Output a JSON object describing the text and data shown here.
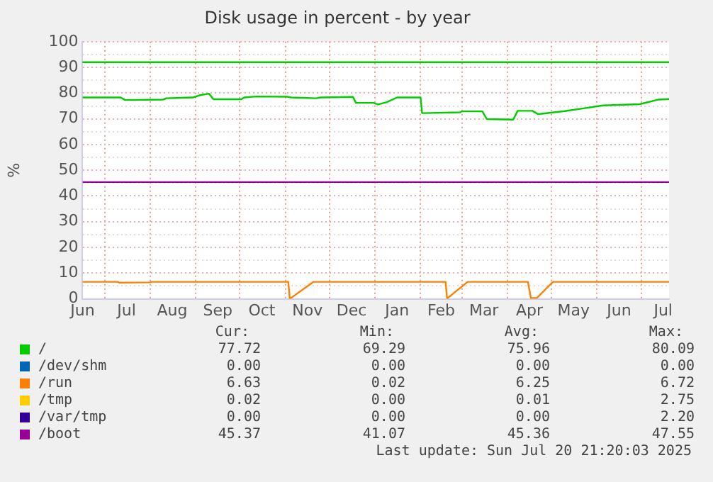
{
  "chart_data": {
    "type": "line",
    "title": "Disk usage in percent - by year",
    "ylabel": "%",
    "xlim": [
      "2024-06-16",
      "2025-07-20"
    ],
    "xticks": [
      {
        "value": "2024-06-16",
        "label": "Jun"
      },
      {
        "value": "2024-07-01",
        "label": null
      },
      {
        "value": "2024-07-16",
        "label": "Jul"
      },
      {
        "value": "2024-08-01",
        "label": null
      },
      {
        "value": "2024-08-16",
        "label": "Aug"
      },
      {
        "value": "2024-09-01",
        "label": null
      },
      {
        "value": "2024-09-16",
        "label": "Sep"
      },
      {
        "value": "2024-10-01",
        "label": null
      },
      {
        "value": "2024-10-16",
        "label": "Oct"
      },
      {
        "value": "2024-11-01",
        "label": null
      },
      {
        "value": "2024-11-16",
        "label": "Nov"
      },
      {
        "value": "2024-12-01",
        "label": null
      },
      {
        "value": "2024-12-16",
        "label": "Dec"
      },
      {
        "value": "2025-01-01",
        "label": null
      },
      {
        "value": "2025-01-16",
        "label": "Jan"
      },
      {
        "value": "2025-02-01",
        "label": null
      },
      {
        "value": "2025-02-15",
        "label": "Feb"
      },
      {
        "value": "2025-03-01",
        "label": null
      },
      {
        "value": "2025-03-16",
        "label": "Mar"
      },
      {
        "value": "2025-04-01",
        "label": null
      },
      {
        "value": "2025-04-16",
        "label": "Apr"
      },
      {
        "value": "2025-05-01",
        "label": null
      },
      {
        "value": "2025-05-16",
        "label": "May"
      },
      {
        "value": "2025-06-01",
        "label": null
      },
      {
        "value": "2025-06-16",
        "label": "Jun"
      },
      {
        "value": "2025-07-01",
        "label": null
      },
      {
        "value": "2025-07-16",
        "label": "Jul"
      }
    ],
    "ylim": [
      0,
      100
    ],
    "yticks": [
      0,
      {
        "value": 5,
        "label": null
      },
      10,
      {
        "value": 15,
        "label": null
      },
      20,
      {
        "value": 25,
        "label": null
      },
      30,
      {
        "value": 35,
        "label": null
      },
      40,
      {
        "value": 45,
        "label": null
      },
      50,
      {
        "value": 55,
        "label": null
      },
      60,
      {
        "value": 65,
        "label": null
      },
      70,
      {
        "value": 75,
        "label": null
      },
      80,
      {
        "value": 85,
        "label": null
      },
      90,
      {
        "value": 95,
        "label": null
      },
      100
    ],
    "grid": true,
    "legend": "bottom left",
    "marker": "none",
    "line_style": "solid",
    "ref_lines": [
      {
        "axis": "y",
        "value": 92,
        "color": "#00cc00"
      }
    ],
    "series": [
      {
        "name": "/",
        "color": "#00cc00",
        "x": [
          "2024-06-16",
          "2024-07-12",
          "2024-07-15",
          "2024-08-10",
          "2024-08-12",
          "2024-08-30",
          "2024-09-04",
          "2024-09-10",
          "2024-09-13",
          "2024-10-02",
          "2024-10-04",
          "2024-10-12",
          "2024-11-02",
          "2024-11-05",
          "2024-11-22",
          "2024-11-25",
          "2024-12-17",
          "2024-12-19",
          "2024-12-31",
          "2025-01-03",
          "2025-01-09",
          "2025-01-16",
          "2025-02-01",
          "2025-02-02",
          "2025-02-28",
          "2025-03-01",
          "2025-03-15",
          "2025-03-18",
          "2025-04-05",
          "2025-04-08",
          "2025-04-18",
          "2025-04-22",
          "2025-05-10",
          "2025-05-22",
          "2025-06-05",
          "2025-06-30",
          "2025-07-13",
          "2025-07-20"
        ],
        "values": [
          78.3,
          78.3,
          77.3,
          77.5,
          78.0,
          78.3,
          79.2,
          79.8,
          77.6,
          77.6,
          78.3,
          78.7,
          78.6,
          78.3,
          78.0,
          78.3,
          78.5,
          76.2,
          76.2,
          75.6,
          76.5,
          78.3,
          78.3,
          72.2,
          72.5,
          72.9,
          72.9,
          69.9,
          69.7,
          73.1,
          73.1,
          71.8,
          73.0,
          74.0,
          75.2,
          75.7,
          77.5,
          77.7
        ]
      },
      {
        "name": "/dev/shm",
        "color": "#0066b3",
        "values": [
          null
        ]
      },
      {
        "name": "/run",
        "color": "#ff8000",
        "x": [
          "2024-06-16",
          "2024-07-10",
          "2024-07-11",
          "2024-08-01",
          "2024-08-02",
          "2024-11-03",
          "2024-11-04",
          "2024-11-20",
          "2025-02-18",
          "2025-02-19",
          "2025-03-05",
          "2025-04-15",
          "2025-04-17",
          "2025-04-21",
          "2025-05-02",
          "2025-07-20"
        ],
        "values": [
          6.6,
          6.6,
          6.3,
          6.4,
          6.6,
          6.6,
          0,
          6.6,
          6.6,
          0.1,
          6.6,
          6.6,
          0.3,
          0.3,
          6.6,
          6.6
        ]
      },
      {
        "name": "/tmp",
        "color": "#ffcc00",
        "values": [
          null
        ]
      },
      {
        "name": "/var/tmp",
        "color": "#330099",
        "values": [
          null
        ]
      },
      {
        "name": "/boot",
        "color": "#990099",
        "x": [
          "2024-06-16",
          "2025-07-20"
        ],
        "values": [
          45.4,
          45.4
        ]
      }
    ],
    "annotations": [
      "Cur:",
      "Min:",
      "Avg:",
      "Max:",
      "77.72",
      "69.29",
      "75.96",
      "80.09",
      "0.00",
      "0.00",
      "0.00",
      "0.00",
      "6.63",
      "0.02",
      "6.25",
      "6.72",
      "0.02",
      "0.00",
      "0.01",
      "2.75",
      "0.00",
      "0.00",
      "0.00",
      "2.20",
      "45.37",
      "41.07",
      "45.36",
      "47.55",
      "Last update: Sun Jul 20 21:20:03 2025"
    ]
  }
}
